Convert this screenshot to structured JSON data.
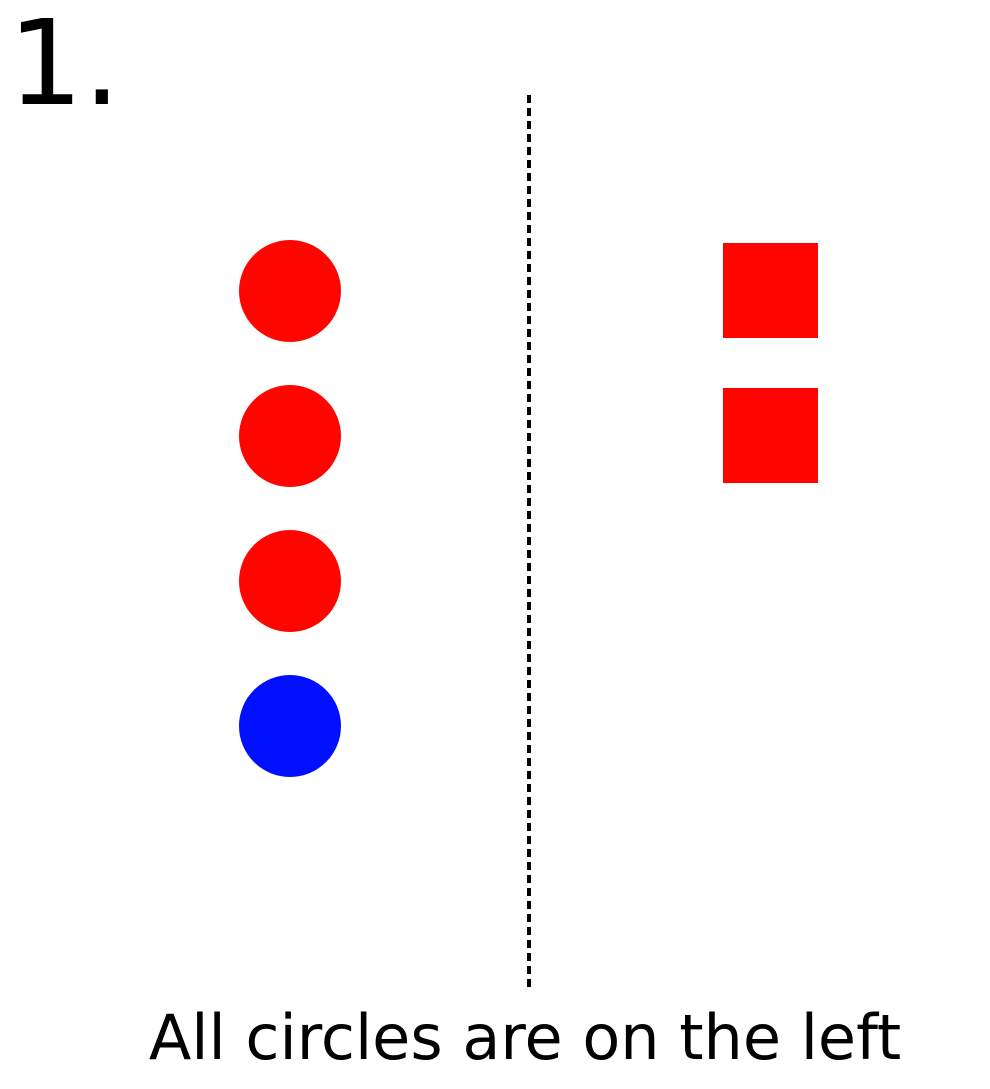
{
  "figure": {
    "number_label": "1.",
    "caption": "All circles are on the left"
  },
  "colors": {
    "red": "#ff0500",
    "blue": "#0010ff",
    "divider": "#000000"
  },
  "left_group": {
    "shape": "circle",
    "items": [
      {
        "color": "red"
      },
      {
        "color": "red"
      },
      {
        "color": "red"
      },
      {
        "color": "blue"
      }
    ]
  },
  "right_group": {
    "shape": "square",
    "items": [
      {
        "color": "red"
      },
      {
        "color": "red"
      }
    ]
  },
  "divider": {
    "style": "dashed"
  }
}
